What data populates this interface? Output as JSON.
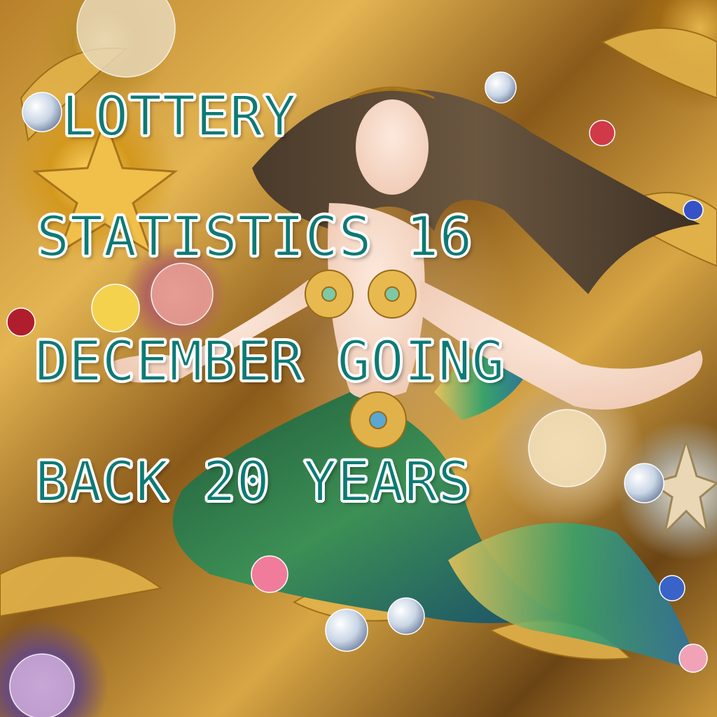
{
  "headline": {
    "line1": "LOTTERY",
    "line2": "STATISTICS 16",
    "line3": "DECEMBER GOING",
    "line4": "BACK 20 YEARS"
  },
  "colors": {
    "text_fill": "#0d7a74",
    "text_outline": "#ffffff",
    "gold": "#d9a441",
    "tail_green": "#2f7a45",
    "hair_brown": "#5a4632"
  },
  "illustration": {
    "subject": "mermaid-icon"
  }
}
